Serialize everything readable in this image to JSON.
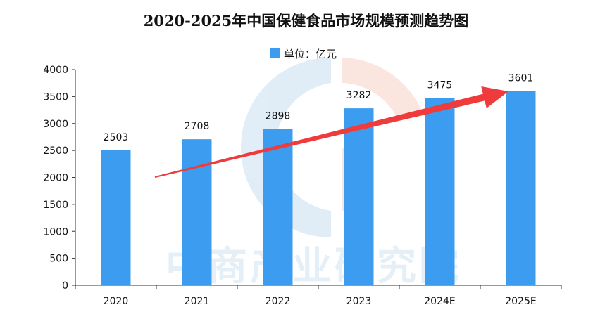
{
  "chart_data": {
    "type": "bar",
    "title": "2020-2025年中国保健食品市场规模预测趋势图",
    "legend": "单位：亿元",
    "legend_position": "top-center",
    "categories": [
      "2020",
      "2021",
      "2022",
      "2023",
      "2024E",
      "2025E"
    ],
    "series": [
      {
        "name": "单位：亿元",
        "values": [
          2503,
          2708,
          2898,
          3282,
          3475,
          3601
        ]
      }
    ],
    "data_labels": [
      "2503",
      "2708",
      "2898",
      "3282",
      "3475",
      "3601"
    ],
    "yticks": [
      "0",
      "500",
      "1000",
      "1500",
      "2000",
      "2500",
      "3000",
      "3500",
      "4000"
    ],
    "ylim": [
      0,
      4000
    ],
    "grid": false,
    "bar_color": "#3c9cf0",
    "arrow_color": "#ef3b3b",
    "watermark": "中商产业研究院"
  }
}
